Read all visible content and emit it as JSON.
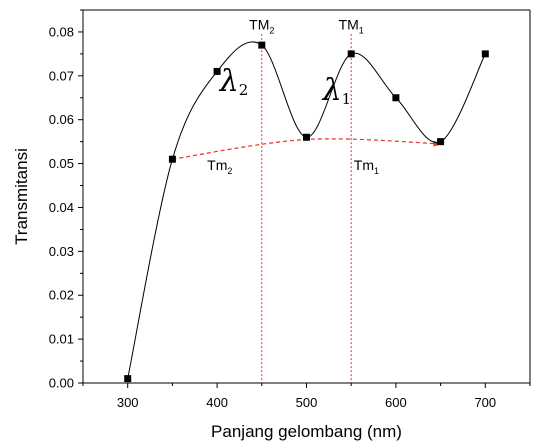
{
  "chart_data": {
    "type": "line",
    "xlabel": "Panjang gelombang (nm)",
    "ylabel": "Transmitansi",
    "xlim": [
      250,
      750
    ],
    "ylim": [
      0,
      0.085
    ],
    "x_ticks": [
      300,
      400,
      500,
      600,
      700
    ],
    "y_ticks": [
      0.0,
      0.01,
      0.02,
      0.03,
      0.04,
      0.05,
      0.06,
      0.07,
      0.08
    ],
    "grid": false,
    "series": [
      {
        "x": [
          300,
          350,
          400,
          450,
          500,
          550,
          600,
          650,
          700
        ],
        "y": [
          0.001,
          0.051,
          0.071,
          0.077,
          0.056,
          0.075,
          0.065,
          0.055,
          0.075
        ],
        "marker": "square",
        "color": "#000000"
      }
    ],
    "envelope_minima": {
      "x": [
        350,
        500,
        650
      ],
      "y": [
        0.051,
        0.0555,
        0.0545
      ],
      "color": "#e8312a",
      "style": "dashed"
    },
    "reference_lines": [
      {
        "x": 450,
        "color": "#e8312a",
        "style": "dotted"
      },
      {
        "x": 550,
        "color": "#e8312a",
        "style": "dotted"
      }
    ],
    "annotations": [
      {
        "id": "TM2",
        "main": "TM",
        "sub": "2",
        "x": 450,
        "y": 0.0805
      },
      {
        "id": "TM1",
        "main": "TM",
        "sub": "1",
        "x": 550,
        "y": 0.0805
      },
      {
        "id": "Tm2",
        "main": "Tm",
        "sub": "2",
        "x": 403,
        "y": 0.0485
      },
      {
        "id": "Tm1",
        "main": "Tm",
        "sub": "1",
        "x": 567,
        "y": 0.0485
      },
      {
        "id": "lambda2",
        "main": "λ",
        "sub": "2",
        "x": 403,
        "y": 0.0665
      },
      {
        "id": "lambda1",
        "main": "λ",
        "sub": "1",
        "x": 518,
        "y": 0.0645
      }
    ]
  }
}
